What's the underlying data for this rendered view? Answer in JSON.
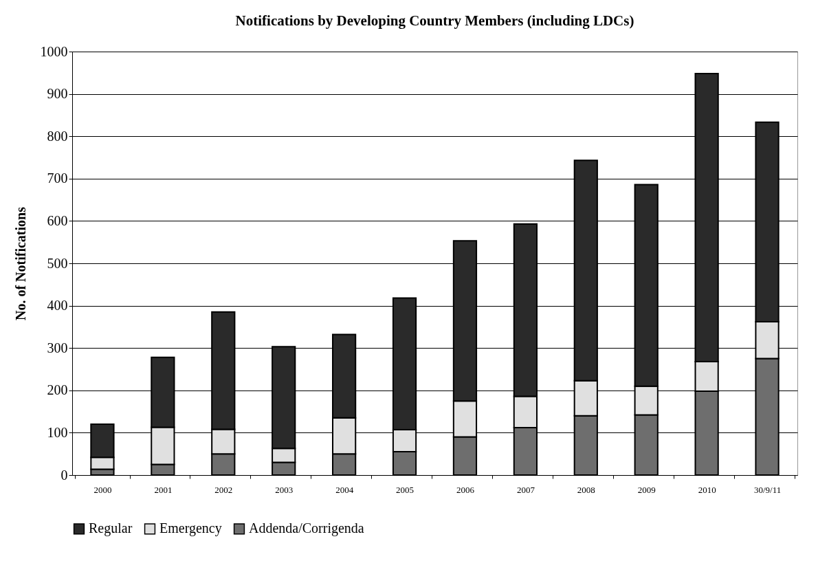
{
  "chart_data": {
    "type": "bar",
    "title": "Notifications by Developing Country Members (including LDCs)",
    "ylabel": "No. of Notifications",
    "categories": [
      "2000",
      "2001",
      "2002",
      "2003",
      "2004",
      "2005",
      "2006",
      "2007",
      "2008",
      "2009",
      "2010",
      "30/9/11"
    ],
    "stacked": true,
    "series": [
      {
        "name": "Addenda/Corrigenda",
        "color": "#6e6e6e",
        "values": [
          14,
          25,
          50,
          30,
          50,
          55,
          90,
          112,
          140,
          142,
          198,
          275
        ]
      },
      {
        "name": "Emergency",
        "color": "#e0e0e0",
        "values": [
          28,
          88,
          58,
          33,
          85,
          52,
          85,
          74,
          83,
          68,
          70,
          87
        ]
      },
      {
        "name": "Regular",
        "color": "#2a2a2a",
        "values": [
          78,
          165,
          277,
          240,
          197,
          311,
          378,
          407,
          520,
          476,
          680,
          471
        ]
      }
    ],
    "ylim": [
      0,
      1000
    ],
    "yticks": [
      0,
      100,
      200,
      300,
      400,
      500,
      600,
      700,
      800,
      900,
      1000
    ],
    "grid": "y",
    "legend": "bottom"
  }
}
